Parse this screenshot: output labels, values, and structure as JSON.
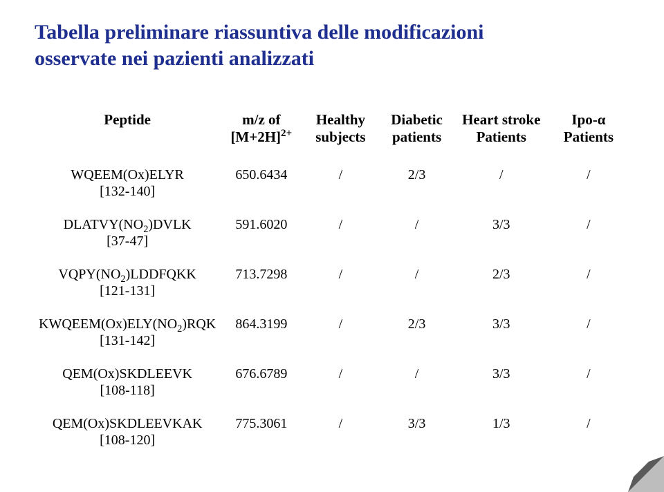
{
  "title_line1": "Tabella preliminare riassuntiva delle modificazioni",
  "title_line2": "osservate nei pazienti analizzati",
  "columns": {
    "peptide": "Peptide",
    "mz_l1": "m/z of",
    "mz_l2_pre": "[M+2H]",
    "mz_l2_sup": "2+",
    "healthy_l1": "Healthy",
    "healthy_l2": "subjects",
    "diabetic_l1": "Diabetic",
    "diabetic_l2": "patients",
    "heart_l1": "Heart stroke",
    "heart_l2": "Patients",
    "ipo_l1_pre": "Ipo-",
    "ipo_l1_alpha": "α",
    "ipo_l2": "Patients"
  },
  "rows": [
    {
      "name_parts": [
        "WQEEM(Ox)ELYR"
      ],
      "range": "[132-140]",
      "mz": "650.6434",
      "healthy": "/",
      "diabetic": "2/3",
      "heart": "/",
      "ipo": "/"
    },
    {
      "name_parts": [
        "DLATVY(NO",
        {
          "sub": "2"
        },
        ")DVLK"
      ],
      "range": "[37-47]",
      "mz": "591.6020",
      "healthy": "/",
      "diabetic": "/",
      "heart": "3/3",
      "ipo": "/"
    },
    {
      "name_parts": [
        "VQPY(NO",
        {
          "sub": "2"
        },
        ")LDDFQKK"
      ],
      "range": "[121-131]",
      "mz": "713.7298",
      "healthy": "/",
      "diabetic": "/",
      "heart": "2/3",
      "ipo": "/"
    },
    {
      "name_parts": [
        "KWQEEM(Ox)ELY(NO",
        {
          "sub": "2"
        },
        ")RQK"
      ],
      "range": "[131-142]",
      "mz": "864.3199",
      "healthy": "/",
      "diabetic": "2/3",
      "heart": "3/3",
      "ipo": "/"
    },
    {
      "name_parts": [
        "QEM(Ox)SKDLEEVK"
      ],
      "range": "[108-118]",
      "mz": "676.6789",
      "healthy": "/",
      "diabetic": "/",
      "heart": "3/3",
      "ipo": "/"
    },
    {
      "name_parts": [
        "QEM(Ox)SKDLEEVKAK"
      ],
      "range": "[108-120]",
      "mz": "775.3061",
      "healthy": "/",
      "diabetic": "3/3",
      "heart": "1/3",
      "ipo": "/"
    }
  ],
  "colors": {
    "title": "#1f2f8f",
    "text": "#000000",
    "background": "#ffffff",
    "corner_dark": "#5a5a5a",
    "corner_light": "#bdbdbd"
  }
}
